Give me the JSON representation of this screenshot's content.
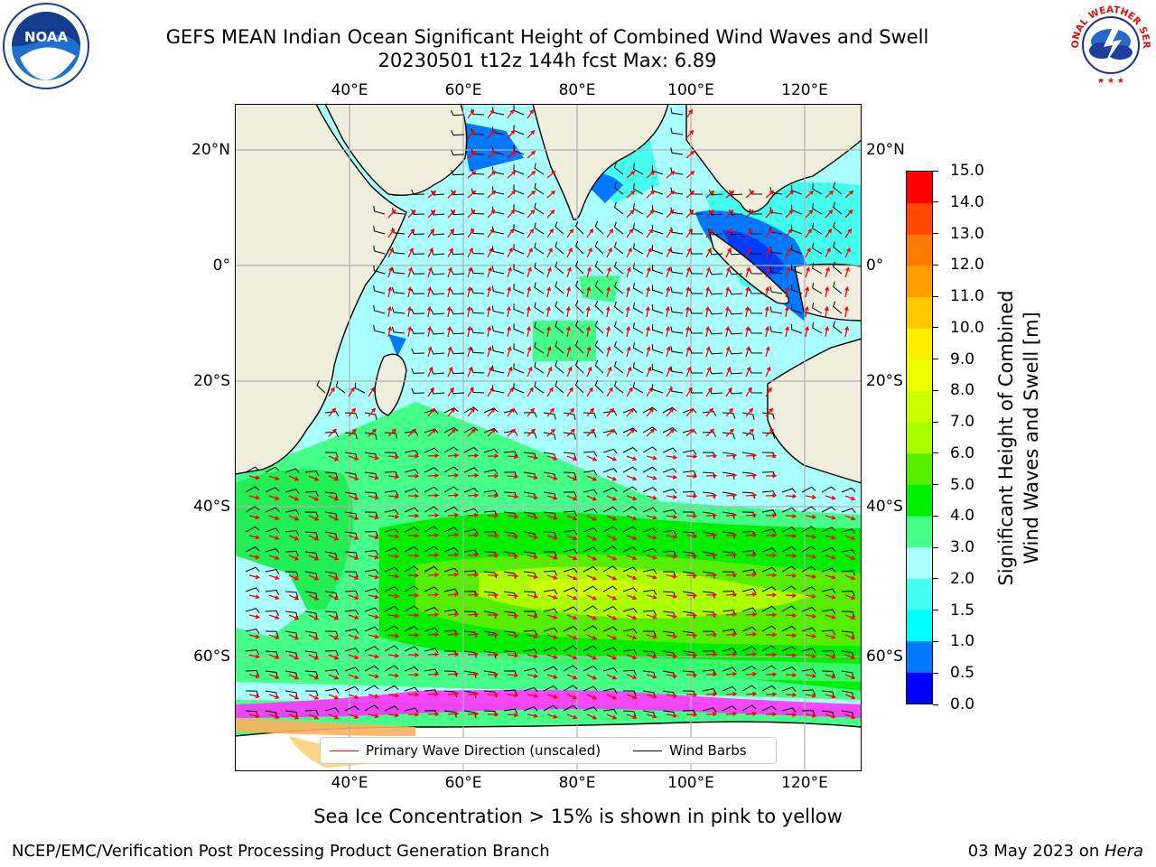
{
  "header": {
    "title_line1": "GEFS MEAN Indian Ocean Significant Height of Combined Wind Waves and Swell",
    "title_line2": "20230501 t12z 144h fcst   Max: 6.89"
  },
  "logos": {
    "left": {
      "icon": "noaa-logo",
      "text": "NOAA"
    },
    "right": {
      "icon": "national-weather-service-logo",
      "text": "NATIONAL WEATHER SERVICE"
    }
  },
  "map": {
    "lon_ticks": [
      "40°E",
      "60°E",
      "80°E",
      "100°E",
      "120°E"
    ],
    "lat_ticks": [
      "20°N",
      "0°",
      "20°S",
      "40°S",
      "60°S"
    ],
    "land_color": "#efeddc",
    "ice_colors": [
      "#ff33ff",
      "#ff88aa",
      "#ffb060",
      "#ffd27a"
    ]
  },
  "legend": {
    "wave_direction": "Primary Wave Direction (unscaled)",
    "wind_barbs": "Wind Barbs",
    "wave_color": "#ff0000",
    "barb_color": "#000000"
  },
  "colorbar": {
    "label_line1": "Significant Height of Combined",
    "label_line2": "Wind Waves and Swell [m]",
    "ticks": [
      "0.0",
      "0.5",
      "1.0",
      "1.5",
      "2.0",
      "3.0",
      "4.0",
      "5.0",
      "6.0",
      "7.0",
      "8.0",
      "9.0",
      "10.0",
      "11.0",
      "12.0",
      "13.0",
      "14.0",
      "15.0"
    ],
    "colors": [
      "#0000ff",
      "#0078ff",
      "#00ffff",
      "#44ffee",
      "#aaffff",
      "#44ff88",
      "#00ee00",
      "#55ee00",
      "#aaff00",
      "#ccff00",
      "#eeff00",
      "#ffee00",
      "#ffc800",
      "#ffa000",
      "#ff7800",
      "#ff4800",
      "#ff0000"
    ]
  },
  "footer": {
    "caption": "Sea Ice Concentration > 15% is shown in pink to yellow",
    "credit": "NCEP/EMC/Verification Post Processing Product Generation Branch",
    "date_prefix": "03 May 2023 on ",
    "machine": "Hera"
  }
}
